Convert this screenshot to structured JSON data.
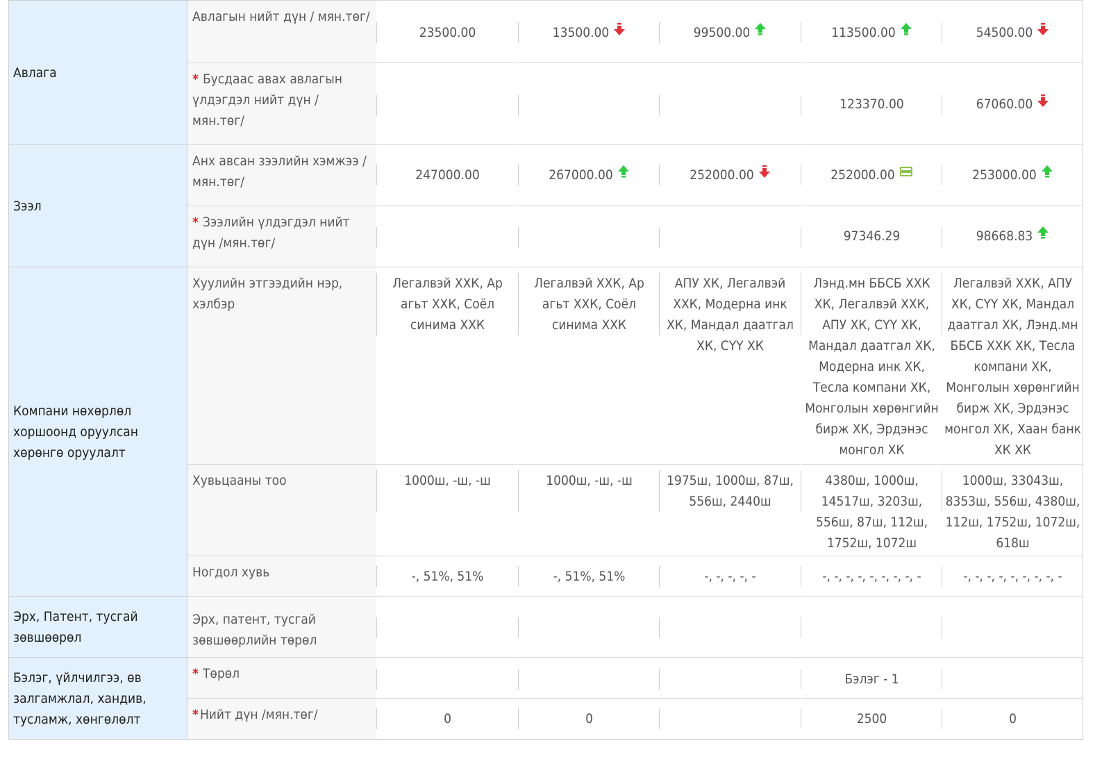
{
  "categories": [
    {
      "name": "Авлага"
    },
    {
      "name": "Зээл"
    },
    {
      "name": "Компани нөхөрлөл хоршоонд оруулсан хөрөнгө оруулалт"
    },
    {
      "name": "Эрх, Патент, тусгай зөвшөөрөл"
    },
    {
      "name": "Бэлэг, үйлчилгээ, өв залгамжлал, хандив, тусламж, хөнгөлөлт"
    }
  ],
  "rows": [
    {
      "label": "Авлагын нийт дүн / мян.төг/",
      "required": false,
      "cells": [
        {
          "v": "23500.00"
        },
        {
          "v": "13500.00",
          "trend": "down"
        },
        {
          "v": "99500.00",
          "trend": "up"
        },
        {
          "v": "113500.00",
          "trend": "up"
        },
        {
          "v": "54500.00",
          "trend": "down"
        }
      ]
    },
    {
      "label": "Бусдаас авах авлагын үлдэгдэл нийт дүн / мян.төг/",
      "required": true,
      "cells": [
        {
          "v": ""
        },
        {
          "v": ""
        },
        {
          "v": ""
        },
        {
          "v": "123370.00"
        },
        {
          "v": "67060.00",
          "trend": "down"
        }
      ]
    },
    {
      "label": "Анх авсан зээлийн хэмжээ /мян.төг/",
      "required": false,
      "cells": [
        {
          "v": "247000.00"
        },
        {
          "v": "267000.00",
          "trend": "up"
        },
        {
          "v": "252000.00",
          "trend": "down"
        },
        {
          "v": "252000.00",
          "trend": "equal"
        },
        {
          "v": "253000.00",
          "trend": "up"
        }
      ]
    },
    {
      "label": "Зээлийн үлдэгдэл нийт дүн /мян.төг/",
      "required": true,
      "cells": [
        {
          "v": ""
        },
        {
          "v": ""
        },
        {
          "v": ""
        },
        {
          "v": "97346.29"
        },
        {
          "v": "98668.83",
          "trend": "up"
        }
      ]
    },
    {
      "label": "Хуулийн этгээдийн нэр, хэлбэр",
      "required": false,
      "cells": [
        {
          "v": "Легалвэй ХХК, Ар агьт ХХК, Соёл синима ХХК"
        },
        {
          "v": "Легалвэй ХХК, Ар агьт ХХК, Соёл синима ХХК"
        },
        {
          "v": "АПУ ХК, Легалвэй ХХК, Модерна инк ХК, Мандал даатгал ХК, СҮҮ ХК"
        },
        {
          "v": "Лэнд.мн ББСБ ХХК ХК, Легалвэй ХХК, АПУ ХК, СҮҮ ХК, Мандал даатгал ХК, Модерна инк ХК, Тесла компани ХК, Монголын хөрөнгийн бирж ХК, Эрдэнэс монгол ХК"
        },
        {
          "v": "Легалвэй ХХК, АПУ ХК, СҮҮ ХК, Мандал даатгал ХК, Лэнд.мн ББСБ ХХК ХК, Тесла компани ХК, Монголын хөрөнгийн бирж ХК, Эрдэнэс монгол ХК, Хаан банк ХК ХК"
        }
      ]
    },
    {
      "label": "Хувьцааны тоо",
      "required": false,
      "cells": [
        {
          "v": "1000ш, -ш, -ш"
        },
        {
          "v": "1000ш, -ш, -ш"
        },
        {
          "v": "1975ш, 1000ш, 87ш, 556ш, 2440ш"
        },
        {
          "v": "4380ш, 1000ш, 14517ш, 3203ш, 556ш, 87ш, 112ш, 1752ш, 1072ш"
        },
        {
          "v": "1000ш, 33043ш, 8353ш, 556ш, 4380ш, 112ш, 1752ш, 1072ш, 618ш"
        }
      ]
    },
    {
      "label": "Ногдол хувь",
      "required": false,
      "cells": [
        {
          "v": "-, 51%, 51%"
        },
        {
          "v": "-, 51%, 51%"
        },
        {
          "v": "-, -, -, -, -"
        },
        {
          "v": "-, -, -, -, -, -, -, -, -"
        },
        {
          "v": "-, -, -, -, -, -, -, -, -"
        }
      ]
    },
    {
      "label": "Эрх, патент, тусгай зөвшөөрлийн төрөл",
      "required": false,
      "cells": [
        {
          "v": ""
        },
        {
          "v": ""
        },
        {
          "v": ""
        },
        {
          "v": ""
        },
        {
          "v": ""
        }
      ]
    },
    {
      "label": "Төрөл",
      "required": true,
      "cells": [
        {
          "v": ""
        },
        {
          "v": ""
        },
        {
          "v": ""
        },
        {
          "v": "Бэлэг - 1"
        },
        {
          "v": ""
        }
      ]
    },
    {
      "label": "Нийт дүн /мян.төг/",
      "required": true,
      "tight": true,
      "cells": [
        {
          "v": "0"
        },
        {
          "v": "0"
        },
        {
          "v": ""
        },
        {
          "v": "2500"
        },
        {
          "v": "0"
        }
      ]
    }
  ],
  "colors": {
    "up": "#2ecc40",
    "down": "#e0323a",
    "equal": "#8bc34a",
    "category_bg": "#e3f0fd",
    "label_bg": "#f7f7f7"
  },
  "icons": {
    "up": "up-arrow-icon",
    "down": "down-arrow-icon",
    "equal": "equal-icon"
  }
}
